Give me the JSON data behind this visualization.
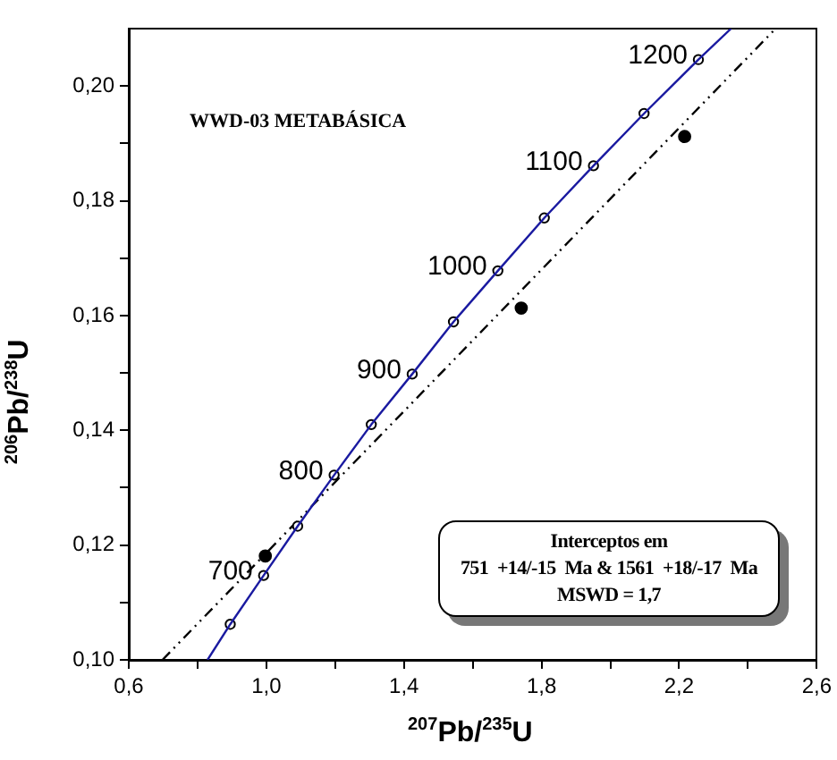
{
  "chart_data": {
    "type": "line",
    "title": "WWD-03 METABÁSICA",
    "xlabel": "$^{207}$Pb/$^{235}$U",
    "ylabel": "$^{206}$Pb/$^{238}$U",
    "xlim": [
      0.6,
      2.6
    ],
    "ylim": [
      0.1,
      0.21
    ],
    "xticks": [
      {
        "value": 0.6,
        "label": "0,6"
      },
      {
        "value": 0.8,
        "label": null
      },
      {
        "value": 1.0,
        "label": "1,0"
      },
      {
        "value": 1.2,
        "label": null
      },
      {
        "value": 1.4,
        "label": "1,4"
      },
      {
        "value": 1.6,
        "label": null
      },
      {
        "value": 1.8,
        "label": "1,8"
      },
      {
        "value": 2.0,
        "label": null
      },
      {
        "value": 2.2,
        "label": "2,2"
      },
      {
        "value": 2.4,
        "label": null
      },
      {
        "value": 2.6,
        "label": "2,6"
      }
    ],
    "yticks": [
      {
        "value": 0.1,
        "label": "0,10"
      },
      {
        "value": 0.11,
        "label": null
      },
      {
        "value": 0.12,
        "label": "0,12"
      },
      {
        "value": 0.13,
        "label": null
      },
      {
        "value": 0.14,
        "label": "0,14"
      },
      {
        "value": 0.15,
        "label": null
      },
      {
        "value": 0.16,
        "label": "0,16"
      },
      {
        "value": 0.17,
        "label": null
      },
      {
        "value": 0.18,
        "label": "0,18"
      },
      {
        "value": 0.19,
        "label": null
      },
      {
        "value": 0.2,
        "label": "0,20"
      }
    ],
    "grid": false,
    "legend": false,
    "series": [
      {
        "type": "line",
        "color": "#1a1aa0",
        "marker": "none",
        "line_style": "solid",
        "x": [
          0.829,
          0.895,
          0.992,
          1.091,
          1.197,
          1.305,
          1.424,
          1.544,
          1.673,
          1.808,
          1.951,
          2.098,
          2.256,
          2.351
        ],
        "values": [
          0.1,
          0.1062,
          0.1147,
          0.1233,
          0.1322,
          0.141,
          0.1498,
          0.1589,
          0.1678,
          0.177,
          0.1861,
          0.1952,
          0.2046,
          0.21
        ]
      },
      {
        "type": "scatter",
        "color": "#000000",
        "marker": "circle",
        "x": [
          0.895,
          0.992,
          1.091,
          1.197,
          1.305,
          1.424,
          1.544,
          1.673,
          1.808,
          1.951,
          2.098,
          2.256
        ],
        "values": [
          0.1062,
          0.1147,
          0.1233,
          0.1322,
          0.141,
          0.1498,
          0.1589,
          0.1678,
          0.177,
          0.1861,
          0.1952,
          0.2046
        ]
      },
      {
        "type": "line",
        "color": "#000000",
        "marker": "none",
        "line_style": "dashed",
        "x": [
          0.698,
          2.474
        ],
        "values": [
          0.1,
          0.2096
        ]
      },
      {
        "type": "scatter",
        "color": "#000000",
        "marker": "circle",
        "x": [
          0.997,
          1.741,
          2.216
        ],
        "values": [
          0.1181,
          0.1613,
          0.1912
        ]
      }
    ],
    "annotations": [
      {
        "text": "700",
        "x": 0.992,
        "y": 0.1147
      },
      {
        "text": "800",
        "x": 1.197,
        "y": 0.1322
      },
      {
        "text": "900",
        "x": 1.424,
        "y": 0.1498
      },
      {
        "text": "1000",
        "x": 1.673,
        "y": 0.1678
      },
      {
        "text": "1100",
        "x": 1.951,
        "y": 0.1861
      },
      {
        "text": "1200",
        "x": 2.256,
        "y": 0.2046
      },
      "Interceptos em",
      "751  +14/-15  Ma & 1561  +18/-17  Ma",
      "MSWD = 1,7"
    ]
  }
}
